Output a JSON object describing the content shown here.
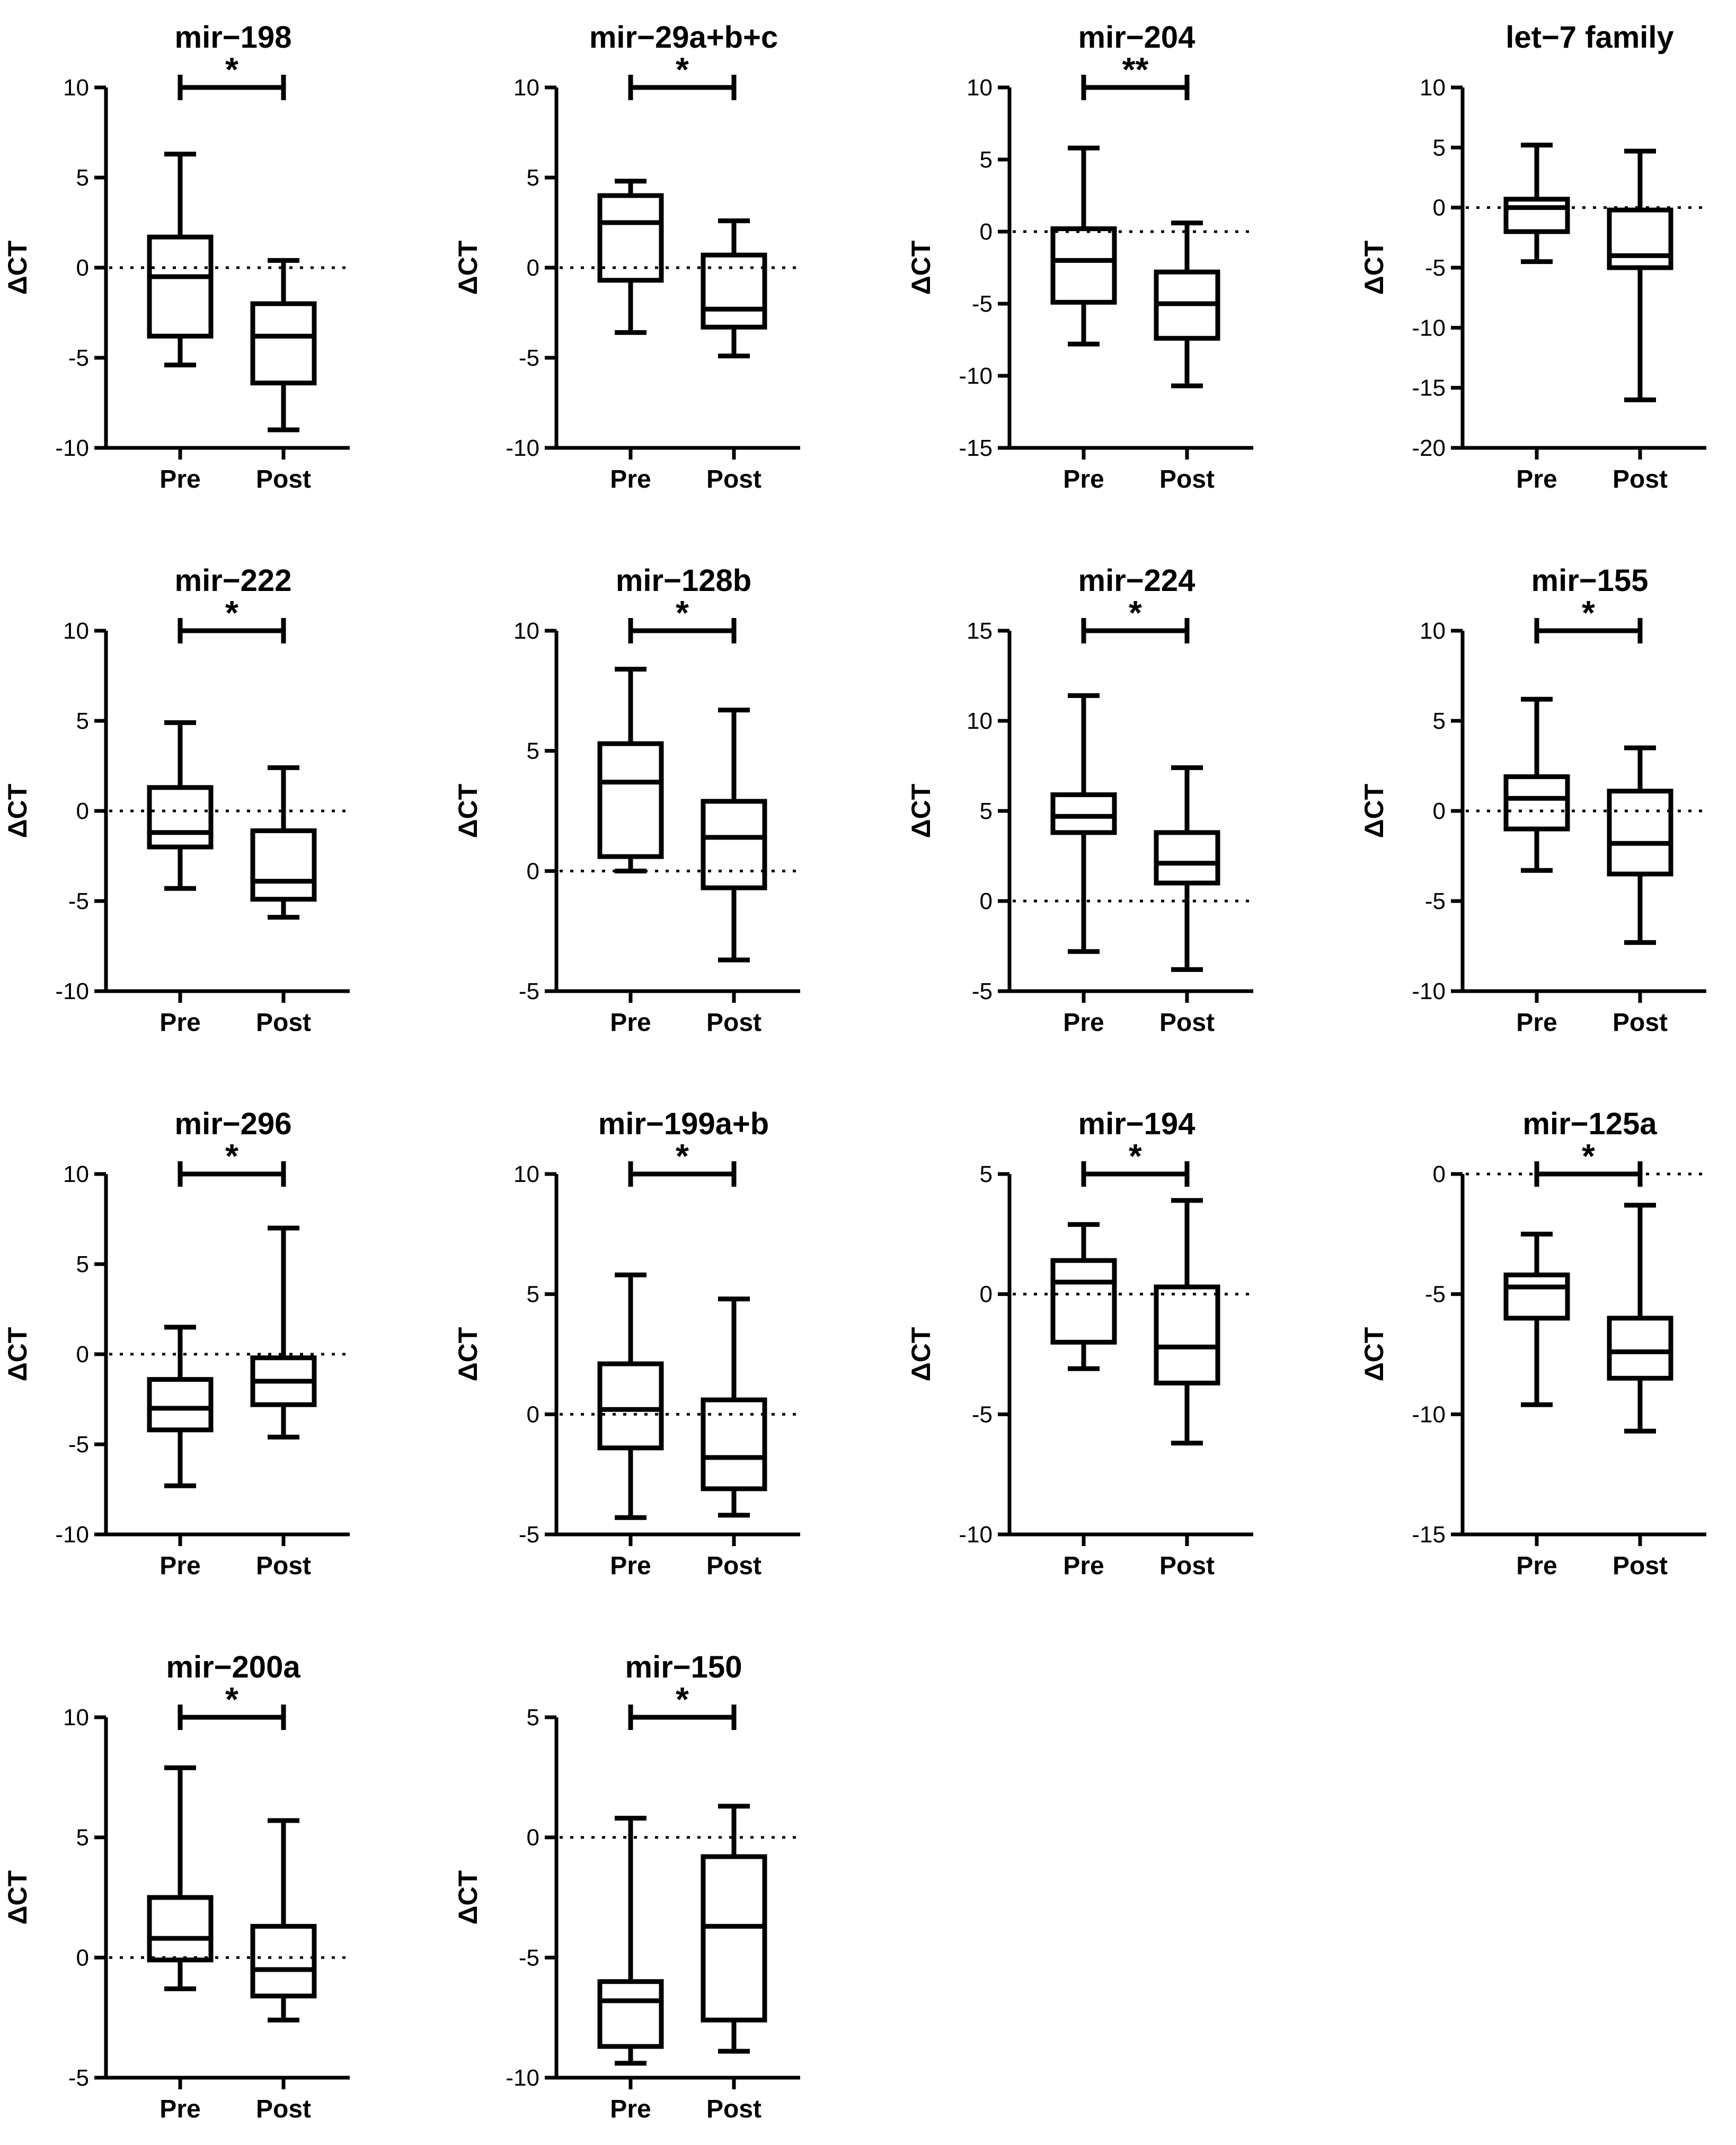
{
  "chart_data": [
    {
      "type": "box",
      "title": "mir−198",
      "ylabel": "ΔCT",
      "ylim": [
        -10,
        10
      ],
      "yticks": [
        "10",
        "5",
        "0",
        "-5",
        "-10"
      ],
      "categories": [
        "Pre",
        "Post"
      ],
      "significance": "*",
      "reference_line": 0,
      "series": [
        {
          "name": "Pre",
          "min": -5.4,
          "q1": -3.8,
          "median": -0.5,
          "q3": 1.7,
          "max": 6.3
        },
        {
          "name": "Post",
          "min": -9.0,
          "q1": -6.4,
          "median": -3.8,
          "q3": -2.0,
          "max": 0.4
        }
      ]
    },
    {
      "type": "box",
      "title": "mir−29a+b+c",
      "ylabel": "ΔCT",
      "ylim": [
        -10,
        10
      ],
      "yticks": [
        "10",
        "5",
        "0",
        "-5",
        "-10"
      ],
      "categories": [
        "Pre",
        "Post"
      ],
      "significance": "*",
      "reference_line": 0,
      "series": [
        {
          "name": "Pre",
          "min": -3.6,
          "q1": -0.7,
          "median": 2.5,
          "q3": 4.0,
          "max": 4.8
        },
        {
          "name": "Post",
          "min": -4.9,
          "q1": -3.3,
          "median": -2.3,
          "q3": 0.7,
          "max": 2.6
        }
      ]
    },
    {
      "type": "box",
      "title": "mir−204",
      "ylabel": "ΔCT",
      "ylim": [
        -15,
        10
      ],
      "yticks": [
        "10",
        "5",
        "0",
        "-5",
        "-10",
        "-15"
      ],
      "categories": [
        "Pre",
        "Post"
      ],
      "significance": "**",
      "reference_line": 0,
      "series": [
        {
          "name": "Pre",
          "min": -7.8,
          "q1": -4.9,
          "median": -2.0,
          "q3": 0.2,
          "max": 5.8
        },
        {
          "name": "Post",
          "min": -10.7,
          "q1": -7.4,
          "median": -5.0,
          "q3": -2.8,
          "max": 0.6
        }
      ]
    },
    {
      "type": "box",
      "title": "let−7 family",
      "ylabel": "ΔCT",
      "ylim": [
        -20,
        10
      ],
      "yticks": [
        "10",
        "5",
        "0",
        "-5",
        "-10",
        "-15",
        "-20"
      ],
      "categories": [
        "Pre",
        "Post"
      ],
      "significance": "",
      "reference_line": 0,
      "series": [
        {
          "name": "Pre",
          "min": -4.5,
          "q1": -2.0,
          "median": 0.0,
          "q3": 0.7,
          "max": 5.2
        },
        {
          "name": "Post",
          "min": -16.0,
          "q1": -5.0,
          "median": -4.0,
          "q3": -0.2,
          "max": 4.7
        }
      ]
    },
    {
      "type": "box",
      "title": "mir−222",
      "ylabel": "ΔCT",
      "ylim": [
        -10,
        10
      ],
      "yticks": [
        "10",
        "5",
        "0",
        "-5",
        "-10"
      ],
      "categories": [
        "Pre",
        "Post"
      ],
      "significance": "*",
      "reference_line": 0,
      "series": [
        {
          "name": "Pre",
          "min": -4.3,
          "q1": -2.0,
          "median": -1.2,
          "q3": 1.3,
          "max": 4.9
        },
        {
          "name": "Post",
          "min": -5.9,
          "q1": -4.9,
          "median": -3.9,
          "q3": -1.1,
          "max": 2.4
        }
      ]
    },
    {
      "type": "box",
      "title": "mir−128b",
      "ylabel": "ΔCT",
      "ylim": [
        -5,
        10
      ],
      "yticks": [
        "10",
        "5",
        "0",
        "-5"
      ],
      "categories": [
        "Pre",
        "Post"
      ],
      "significance": "*",
      "reference_line": 0,
      "series": [
        {
          "name": "Pre",
          "min": 0.0,
          "q1": 0.6,
          "median": 3.7,
          "q3": 5.3,
          "max": 8.4
        },
        {
          "name": "Post",
          "min": -3.7,
          "q1": -0.7,
          "median": 1.4,
          "q3": 2.9,
          "max": 6.7
        }
      ]
    },
    {
      "type": "box",
      "title": "mir−224",
      "ylabel": "ΔCT",
      "ylim": [
        -5,
        15
      ],
      "yticks": [
        "15",
        "10",
        "5",
        "0",
        "-5"
      ],
      "categories": [
        "Pre",
        "Post"
      ],
      "significance": "*",
      "reference_line": 0,
      "series": [
        {
          "name": "Pre",
          "min": -2.8,
          "q1": 3.8,
          "median": 4.7,
          "q3": 5.9,
          "max": 11.4
        },
        {
          "name": "Post",
          "min": -3.8,
          "q1": 1.0,
          "median": 2.1,
          "q3": 3.8,
          "max": 7.4
        }
      ]
    },
    {
      "type": "box",
      "title": "mir−155",
      "ylabel": "ΔCT",
      "ylim": [
        -10,
        10
      ],
      "yticks": [
        "10",
        "5",
        "0",
        "-5",
        "-10"
      ],
      "categories": [
        "Pre",
        "Post"
      ],
      "significance": "*",
      "reference_line": 0,
      "series": [
        {
          "name": "Pre",
          "min": -3.3,
          "q1": -1.0,
          "median": 0.7,
          "q3": 1.9,
          "max": 6.2
        },
        {
          "name": "Post",
          "min": -7.3,
          "q1": -3.5,
          "median": -1.8,
          "q3": 1.1,
          "max": 3.5
        }
      ]
    },
    {
      "type": "box",
      "title": "mir−296",
      "ylabel": "ΔCT",
      "ylim": [
        -10,
        10
      ],
      "yticks": [
        "10",
        "5",
        "0",
        "-5",
        "-10"
      ],
      "categories": [
        "Pre",
        "Post"
      ],
      "significance": "*",
      "reference_line": 0,
      "series": [
        {
          "name": "Pre",
          "min": -7.3,
          "q1": -4.2,
          "median": -3.0,
          "q3": -1.4,
          "max": 1.5
        },
        {
          "name": "Post",
          "min": -4.6,
          "q1": -2.8,
          "median": -1.5,
          "q3": -0.2,
          "max": 7.0
        }
      ]
    },
    {
      "type": "box",
      "title": "mir−199a+b",
      "ylabel": "ΔCT",
      "ylim": [
        -5,
        10
      ],
      "yticks": [
        "10",
        "5",
        "0",
        "-5"
      ],
      "categories": [
        "Pre",
        "Post"
      ],
      "significance": "*",
      "reference_line": 0,
      "series": [
        {
          "name": "Pre",
          "min": -4.3,
          "q1": -1.4,
          "median": 0.2,
          "q3": 2.1,
          "max": 5.8
        },
        {
          "name": "Post",
          "min": -4.2,
          "q1": -3.1,
          "median": -1.8,
          "q3": 0.6,
          "max": 4.8
        }
      ]
    },
    {
      "type": "box",
      "title": "mir−194",
      "ylabel": "ΔCT",
      "ylim": [
        -10,
        5
      ],
      "yticks": [
        "5",
        "0",
        "-5",
        "-10"
      ],
      "categories": [
        "Pre",
        "Post"
      ],
      "significance": "*",
      "reference_line": 0,
      "series": [
        {
          "name": "Pre",
          "min": -3.1,
          "q1": -2.0,
          "median": 0.5,
          "q3": 1.4,
          "max": 2.9
        },
        {
          "name": "Post",
          "min": -6.2,
          "q1": -3.7,
          "median": -2.2,
          "q3": 0.3,
          "max": 3.9
        }
      ]
    },
    {
      "type": "box",
      "title": "mir−125a",
      "ylabel": "ΔCT",
      "ylim": [
        -15,
        0
      ],
      "yticks": [
        "0",
        "-5",
        "-10",
        "-15"
      ],
      "categories": [
        "Pre",
        "Post"
      ],
      "significance": "*",
      "reference_line": 0,
      "series": [
        {
          "name": "Pre",
          "min": -9.6,
          "q1": -6.0,
          "median": -4.7,
          "q3": -4.2,
          "max": -2.5
        },
        {
          "name": "Post",
          "min": -10.7,
          "q1": -8.5,
          "median": -7.4,
          "q3": -6.0,
          "max": -1.3
        }
      ]
    },
    {
      "type": "box",
      "title": "mir−200a",
      "ylabel": "ΔCT",
      "ylim": [
        -5,
        10
      ],
      "yticks": [
        "10",
        "5",
        "0",
        "-5"
      ],
      "categories": [
        "Pre",
        "Post"
      ],
      "significance": "*",
      "reference_line": 0,
      "series": [
        {
          "name": "Pre",
          "min": -1.3,
          "q1": -0.1,
          "median": 0.8,
          "q3": 2.5,
          "max": 7.9
        },
        {
          "name": "Post",
          "min": -2.6,
          "q1": -1.6,
          "median": -0.5,
          "q3": 1.3,
          "max": 5.7
        }
      ]
    },
    {
      "type": "box",
      "title": "mir−150",
      "ylabel": "ΔCT",
      "ylim": [
        -10,
        5
      ],
      "yticks": [
        "5",
        "0",
        "-5",
        "-10"
      ],
      "categories": [
        "Pre",
        "Post"
      ],
      "significance": "*",
      "reference_line": 0,
      "series": [
        {
          "name": "Pre",
          "min": -9.4,
          "q1": -8.7,
          "median": -6.8,
          "q3": -6.0,
          "max": 0.8
        },
        {
          "name": "Post",
          "min": -8.9,
          "q1": -7.6,
          "median": -3.7,
          "q3": -0.8,
          "max": 1.3
        }
      ]
    }
  ]
}
